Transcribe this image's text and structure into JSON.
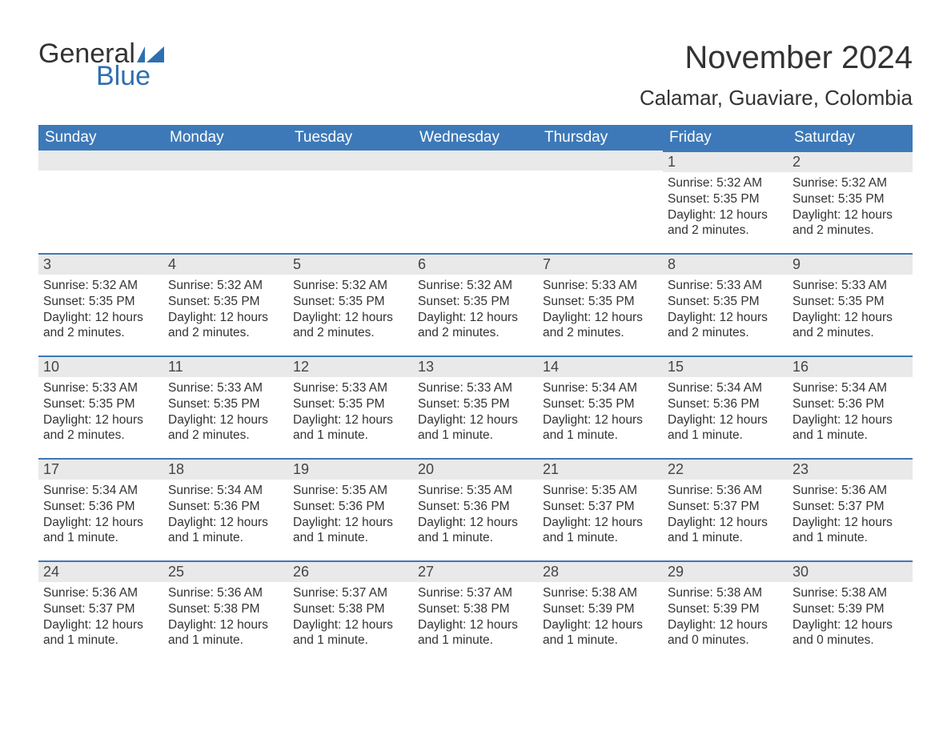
{
  "logo": {
    "text_general": "General",
    "text_blue": "Blue",
    "flag_color": "#2f6fb0"
  },
  "title": "November 2024",
  "location": "Calamar, Guaviare, Colombia",
  "colors": {
    "header_bg": "#3d79b8",
    "header_text": "#ffffff",
    "daynum_bg": "#e9e9e9",
    "row_top_border": "#3d79b8",
    "body_text": "#333333",
    "page_bg": "#ffffff"
  },
  "typography": {
    "title_fontsize": 40,
    "location_fontsize": 26,
    "weekday_fontsize": 19,
    "daynum_fontsize": 18,
    "body_fontsize": 15.5
  },
  "weekdays": [
    "Sunday",
    "Monday",
    "Tuesday",
    "Wednesday",
    "Thursday",
    "Friday",
    "Saturday"
  ],
  "weeks": [
    [
      null,
      null,
      null,
      null,
      null,
      {
        "d": "1",
        "sunrise": "5:32 AM",
        "sunset": "5:35 PM",
        "daylight": "12 hours and 2 minutes."
      },
      {
        "d": "2",
        "sunrise": "5:32 AM",
        "sunset": "5:35 PM",
        "daylight": "12 hours and 2 minutes."
      }
    ],
    [
      {
        "d": "3",
        "sunrise": "5:32 AM",
        "sunset": "5:35 PM",
        "daylight": "12 hours and 2 minutes."
      },
      {
        "d": "4",
        "sunrise": "5:32 AM",
        "sunset": "5:35 PM",
        "daylight": "12 hours and 2 minutes."
      },
      {
        "d": "5",
        "sunrise": "5:32 AM",
        "sunset": "5:35 PM",
        "daylight": "12 hours and 2 minutes."
      },
      {
        "d": "6",
        "sunrise": "5:32 AM",
        "sunset": "5:35 PM",
        "daylight": "12 hours and 2 minutes."
      },
      {
        "d": "7",
        "sunrise": "5:33 AM",
        "sunset": "5:35 PM",
        "daylight": "12 hours and 2 minutes."
      },
      {
        "d": "8",
        "sunrise": "5:33 AM",
        "sunset": "5:35 PM",
        "daylight": "12 hours and 2 minutes."
      },
      {
        "d": "9",
        "sunrise": "5:33 AM",
        "sunset": "5:35 PM",
        "daylight": "12 hours and 2 minutes."
      }
    ],
    [
      {
        "d": "10",
        "sunrise": "5:33 AM",
        "sunset": "5:35 PM",
        "daylight": "12 hours and 2 minutes."
      },
      {
        "d": "11",
        "sunrise": "5:33 AM",
        "sunset": "5:35 PM",
        "daylight": "12 hours and 2 minutes."
      },
      {
        "d": "12",
        "sunrise": "5:33 AM",
        "sunset": "5:35 PM",
        "daylight": "12 hours and 1 minute."
      },
      {
        "d": "13",
        "sunrise": "5:33 AM",
        "sunset": "5:35 PM",
        "daylight": "12 hours and 1 minute."
      },
      {
        "d": "14",
        "sunrise": "5:34 AM",
        "sunset": "5:35 PM",
        "daylight": "12 hours and 1 minute."
      },
      {
        "d": "15",
        "sunrise": "5:34 AM",
        "sunset": "5:36 PM",
        "daylight": "12 hours and 1 minute."
      },
      {
        "d": "16",
        "sunrise": "5:34 AM",
        "sunset": "5:36 PM",
        "daylight": "12 hours and 1 minute."
      }
    ],
    [
      {
        "d": "17",
        "sunrise": "5:34 AM",
        "sunset": "5:36 PM",
        "daylight": "12 hours and 1 minute."
      },
      {
        "d": "18",
        "sunrise": "5:34 AM",
        "sunset": "5:36 PM",
        "daylight": "12 hours and 1 minute."
      },
      {
        "d": "19",
        "sunrise": "5:35 AM",
        "sunset": "5:36 PM",
        "daylight": "12 hours and 1 minute."
      },
      {
        "d": "20",
        "sunrise": "5:35 AM",
        "sunset": "5:36 PM",
        "daylight": "12 hours and 1 minute."
      },
      {
        "d": "21",
        "sunrise": "5:35 AM",
        "sunset": "5:37 PM",
        "daylight": "12 hours and 1 minute."
      },
      {
        "d": "22",
        "sunrise": "5:36 AM",
        "sunset": "5:37 PM",
        "daylight": "12 hours and 1 minute."
      },
      {
        "d": "23",
        "sunrise": "5:36 AM",
        "sunset": "5:37 PM",
        "daylight": "12 hours and 1 minute."
      }
    ],
    [
      {
        "d": "24",
        "sunrise": "5:36 AM",
        "sunset": "5:37 PM",
        "daylight": "12 hours and 1 minute."
      },
      {
        "d": "25",
        "sunrise": "5:36 AM",
        "sunset": "5:38 PM",
        "daylight": "12 hours and 1 minute."
      },
      {
        "d": "26",
        "sunrise": "5:37 AM",
        "sunset": "5:38 PM",
        "daylight": "12 hours and 1 minute."
      },
      {
        "d": "27",
        "sunrise": "5:37 AM",
        "sunset": "5:38 PM",
        "daylight": "12 hours and 1 minute."
      },
      {
        "d": "28",
        "sunrise": "5:38 AM",
        "sunset": "5:39 PM",
        "daylight": "12 hours and 1 minute."
      },
      {
        "d": "29",
        "sunrise": "5:38 AM",
        "sunset": "5:39 PM",
        "daylight": "12 hours and 0 minutes."
      },
      {
        "d": "30",
        "sunrise": "5:38 AM",
        "sunset": "5:39 PM",
        "daylight": "12 hours and 0 minutes."
      }
    ]
  ],
  "labels": {
    "sunrise": "Sunrise: ",
    "sunset": "Sunset: ",
    "daylight": "Daylight: "
  }
}
